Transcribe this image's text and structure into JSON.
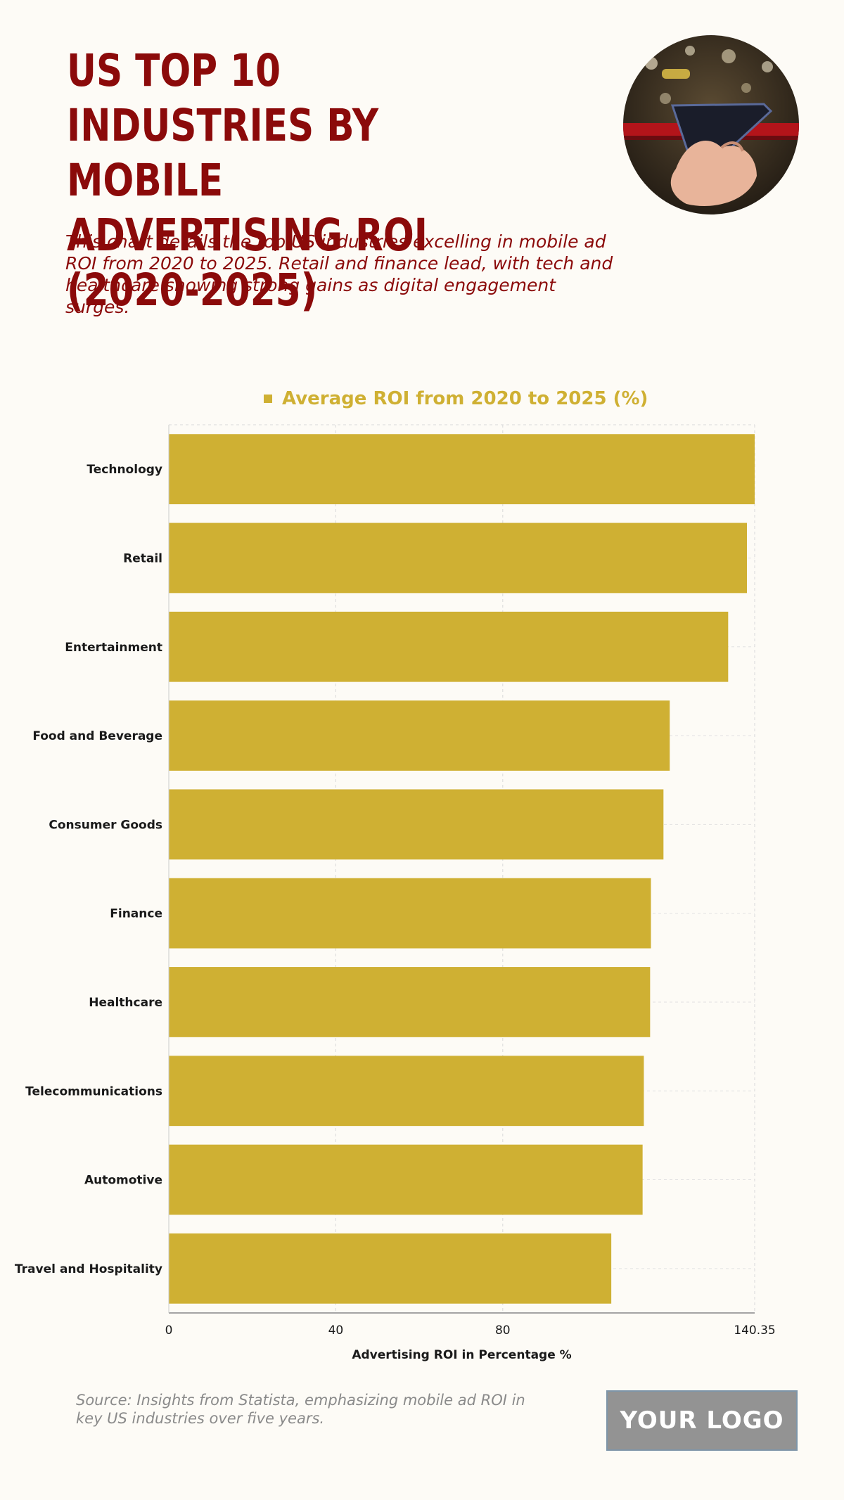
{
  "header": {
    "title": "US TOP 10 INDUSTRIES BY MOBILE ADVERTISING ROI (2020-2025)",
    "subtitle": "This chart details the top US industries excelling in mobile ad ROI from 2020 to 2025. Retail and finance lead, with tech and healthcare showing strong gains as digital engagement surges."
  },
  "footer": {
    "source": "Source: Insights from Statista, emphasizing mobile ad ROI in key US industries over five years.",
    "logo": "YOUR LOGO"
  },
  "colors": {
    "bar": "#cfb033",
    "title": "#8b0a0a",
    "background": "#fdfbf6"
  },
  "chart_data": {
    "type": "bar",
    "orientation": "horizontal",
    "categories": [
      "Technology",
      "Retail",
      "Entertainment",
      "Food and Beverage",
      "Consumer Goods",
      "Finance",
      "Healthcare",
      "Telecommunications",
      "Automotive",
      "Travel and Hospitality"
    ],
    "series": [
      {
        "name": "Average ROI from 2020 to 2025 (%)",
        "values": [
          140.35,
          138.5,
          134,
          120,
          118.5,
          115.5,
          115.3,
          113.8,
          113.5,
          106
        ]
      }
    ],
    "xlabel": "Advertising ROI in Percentage %",
    "ylabel": "",
    "xlim": [
      0,
      140.35
    ],
    "xticks": [
      0,
      40,
      80,
      140.35
    ],
    "xtick_labels": [
      "0",
      "40",
      "80",
      "140.35"
    ],
    "grid": true,
    "legend": "top-center"
  }
}
